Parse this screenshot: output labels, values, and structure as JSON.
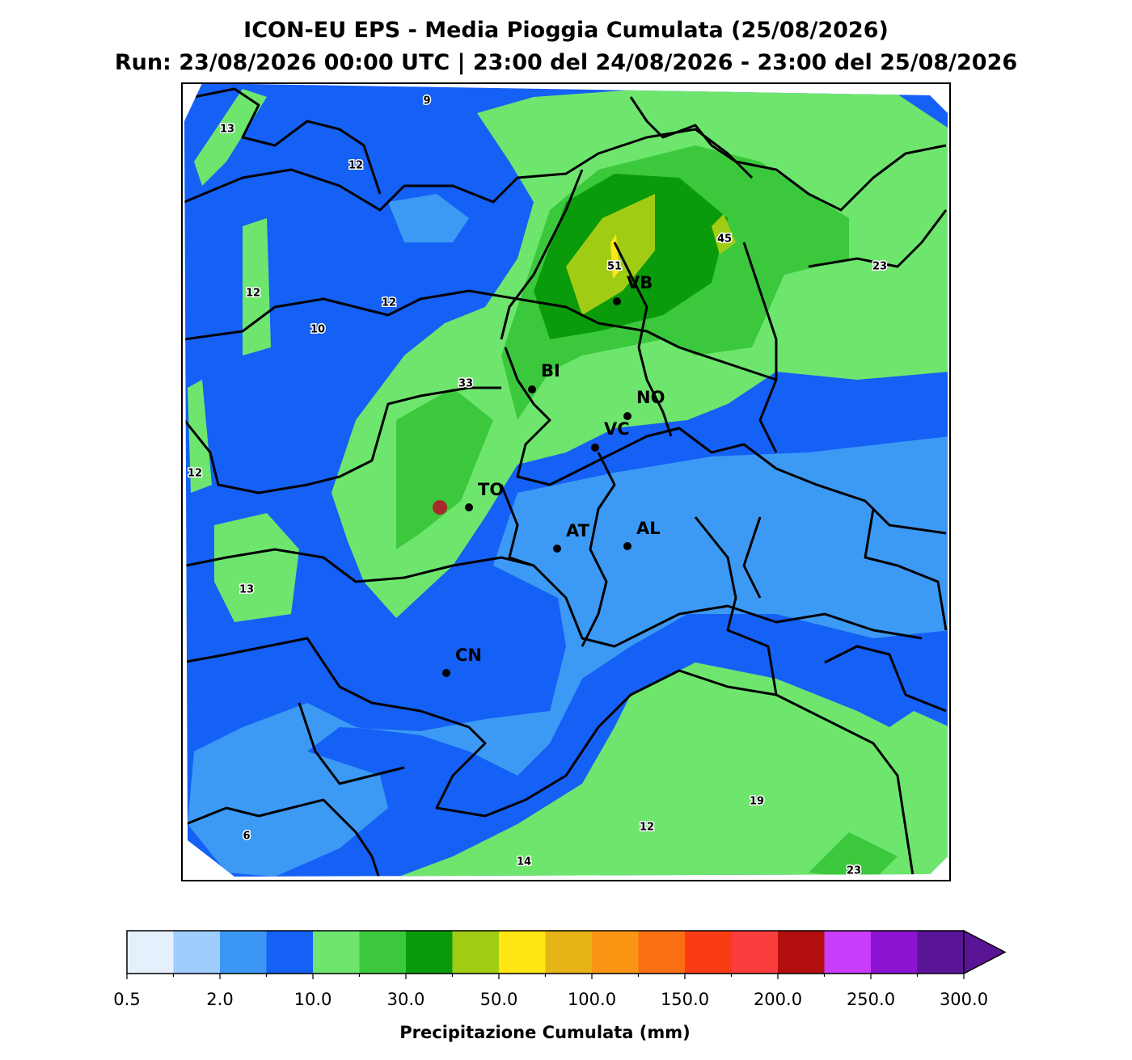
{
  "header": {
    "title": "ICON-EU EPS - Media Pioggia Cumulata (25/08/2026)",
    "subtitle": "Run: 23/08/2026 00:00 UTC | 23:00 del 24/08/2026 - 23:00 del 25/08/2026"
  },
  "map": {
    "value_labels": [
      "13",
      "9",
      "12",
      "12",
      "12",
      "10",
      "51",
      "45",
      "23",
      "33",
      "12",
      "13",
      "6",
      "14",
      "12",
      "19",
      "23"
    ],
    "cities": [
      "VB",
      "BI",
      "NO",
      "VC",
      "TO",
      "AT",
      "AL",
      "CN"
    ]
  },
  "colorbar": {
    "colors": [
      "#e6f0fc",
      "#a0cdfc",
      "#3c96f5",
      "#1560f5",
      "#6ee66e",
      "#3cc83c",
      "#0a9b0a",
      "#a0cd14",
      "#ffe614",
      "#e6b414",
      "#fa9614",
      "#fa6e14",
      "#fa3c14",
      "#fa3c3c",
      "#b40f0f",
      "#c83cfa",
      "#8c14d2",
      "#5a1496"
    ],
    "extend_color": "#5a1496",
    "tick_labels": [
      "0.5",
      "2.0",
      "10.0",
      "30.0",
      "50.0",
      "100.0",
      "150.0",
      "200.0",
      "250.0",
      "300.0"
    ],
    "label": "Precipitazione Cumulata (mm)"
  }
}
